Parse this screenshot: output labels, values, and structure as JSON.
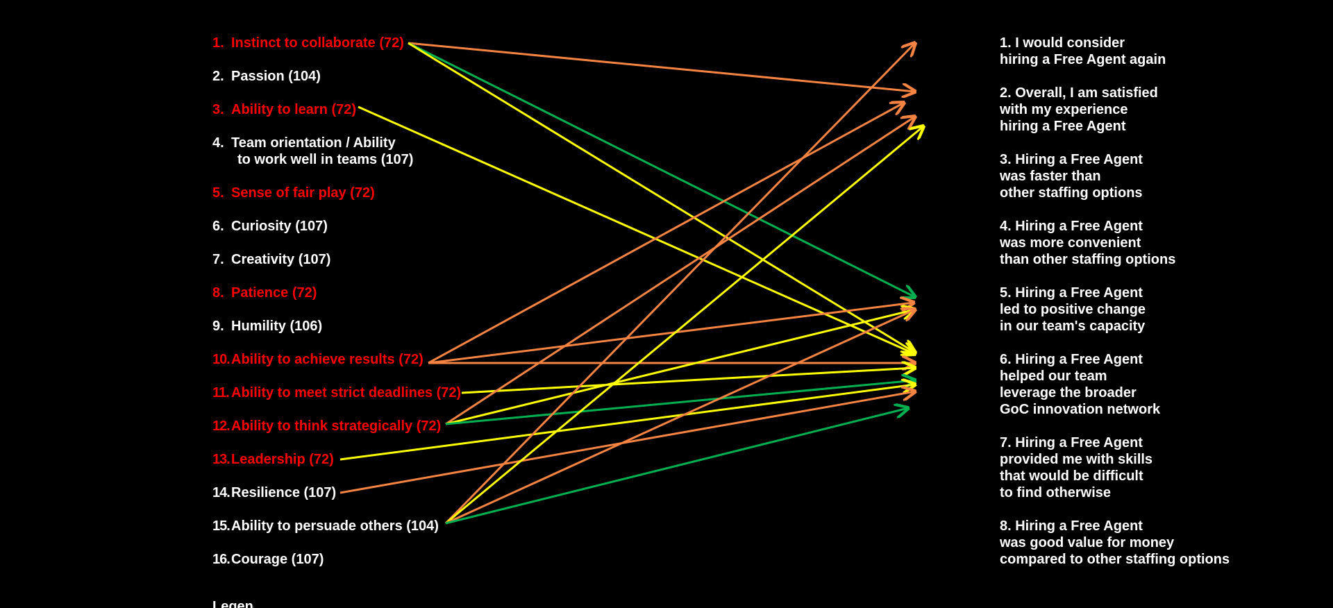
{
  "colors": {
    "background": "#000000",
    "default_text": "#ffffff",
    "highlight_text": "#ff0000",
    "orange": "#f58442",
    "yellow": "#ffff00",
    "green": "#00b050"
  },
  "left_items": [
    {
      "num": "1.",
      "text": "Instinct to collaborate (72)",
      "highlight": true
    },
    {
      "num": "2.",
      "text": "Passion (104)",
      "highlight": false
    },
    {
      "num": "3.",
      "text": "Ability to learn (72)",
      "highlight": true
    },
    {
      "num": "4.",
      "text": "Team orientation / Ability",
      "text2": "to work well in teams (107)",
      "highlight": false
    },
    {
      "num": "5.",
      "text": "Sense of fair play (72)",
      "highlight": true
    },
    {
      "num": "6.",
      "text": "Curiosity (107)",
      "highlight": false
    },
    {
      "num": "7.",
      "text": "Creativity (107)",
      "highlight": false
    },
    {
      "num": "8.",
      "text": "Patience (72)",
      "highlight": true
    },
    {
      "num": "9.",
      "text": "Humility (106)",
      "highlight": false
    },
    {
      "num": "10.",
      "text": "Ability to achieve results (72)",
      "highlight": true
    },
    {
      "num": "11.",
      "text": "Ability to meet strict deadlines (72)",
      "highlight": true
    },
    {
      "num": "12.",
      "text": "Ability to think strategically (72)",
      "highlight": true
    },
    {
      "num": "13.",
      "text": "Leadership (72)",
      "highlight": true
    },
    {
      "num": "14.",
      "text": "Resilience (107)",
      "highlight": false
    },
    {
      "num": "15.",
      "text": "Ability to persuade others (104)",
      "highlight": false
    },
    {
      "num": "16.",
      "text": "Courage (107)",
      "highlight": false
    }
  ],
  "right_items": [
    {
      "lines": [
        "1. I would consider",
        "hiring a Free Agent again"
      ]
    },
    {
      "lines": [
        "2. Overall, I am satisfied",
        "with my experience",
        "hiring a Free Agent"
      ]
    },
    {
      "lines": [
        "3. Hiring a Free Agent",
        "was faster than",
        "other staffing options"
      ]
    },
    {
      "lines": [
        "4. Hiring a Free Agent",
        "was more convenient",
        "than other staffing options"
      ]
    },
    {
      "lines": [
        "5. Hiring a Free Agent",
        "led to positive change",
        "in our team's capacity"
      ]
    },
    {
      "lines": [
        "6. Hiring a Free Agent",
        "helped our team",
        "leverage the broader",
        "GoC innovation network"
      ]
    },
    {
      "lines": [
        "7. Hiring a Free Agent",
        "provided me with skills",
        "that would be difficult",
        "to find otherwise"
      ]
    },
    {
      "lines": [
        "8. Hiring a Free Agent",
        "was good value for money",
        "compared to other staffing options"
      ]
    }
  ],
  "connections": [
    {
      "from": 1,
      "to": 2,
      "color": "orange"
    },
    {
      "from": 1,
      "to": 5,
      "color": "green"
    },
    {
      "from": 1,
      "to": 6,
      "color": "yellow"
    },
    {
      "from": 3,
      "to": 6,
      "color": "yellow"
    },
    {
      "from": 10,
      "to": 2,
      "color": "orange"
    },
    {
      "from": 10,
      "to": 5,
      "color": "orange"
    },
    {
      "from": 10,
      "to": 6,
      "color": "orange"
    },
    {
      "from": 11,
      "to": 6,
      "color": "yellow"
    },
    {
      "from": 12,
      "to": 2,
      "color": "orange"
    },
    {
      "from": 12,
      "to": 5,
      "color": "yellow"
    },
    {
      "from": 12,
      "to": 6,
      "color": "green"
    },
    {
      "from": 13,
      "to": 6,
      "color": "yellow"
    },
    {
      "from": 14,
      "to": 6,
      "color": "orange"
    },
    {
      "from": 15,
      "to": 1,
      "color": "orange"
    },
    {
      "from": 15,
      "to": 2,
      "color": "yellow"
    },
    {
      "from": 15,
      "to": 5,
      "color": "orange"
    },
    {
      "from": 15,
      "to": 6,
      "color": "green"
    }
  ],
  "legend_label": "Legend"
}
